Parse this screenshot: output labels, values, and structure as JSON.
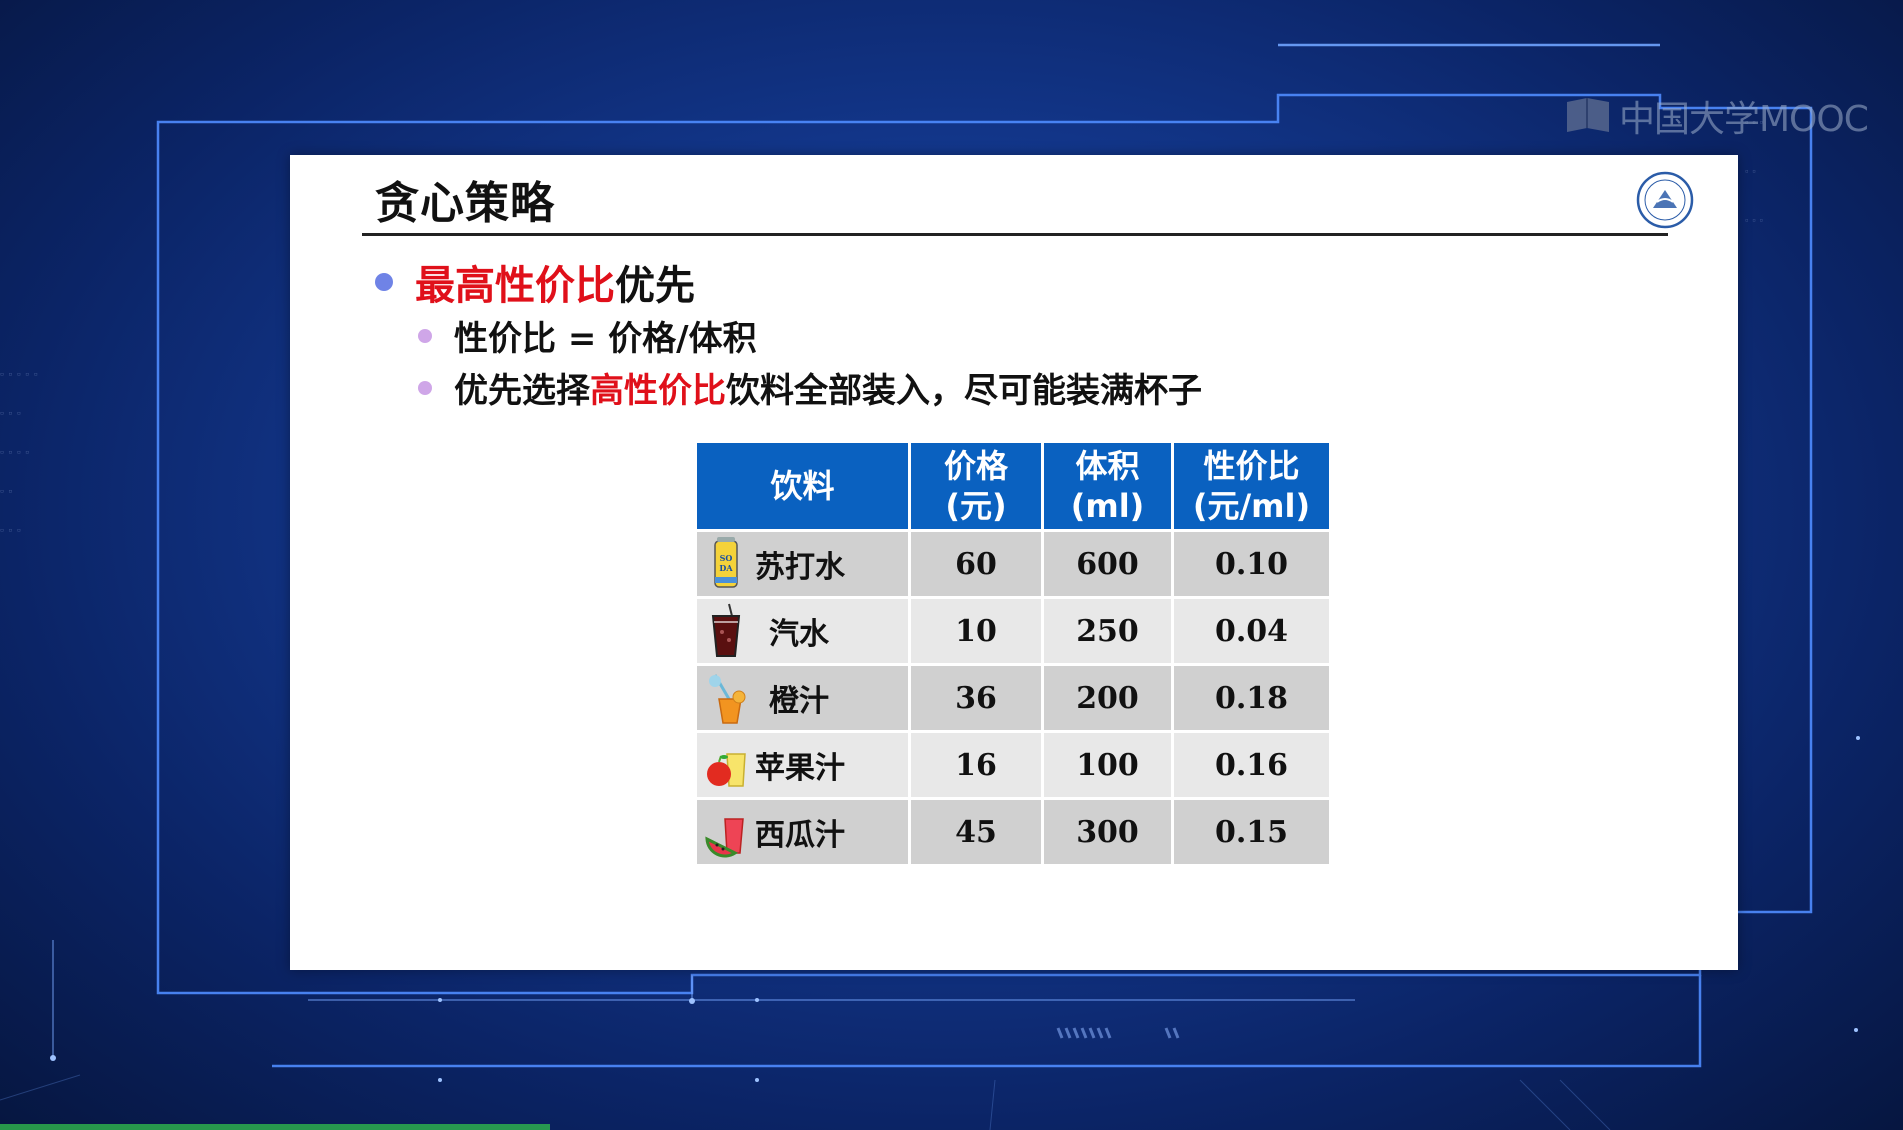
{
  "watermark": {
    "brand": "中国大学MOOC"
  },
  "slide": {
    "title": "贪心策略",
    "bullet1": {
      "highlight": "最高性价比",
      "rest": "优先"
    },
    "sub1": {
      "text": "性价比 = 价格/体积"
    },
    "sub2": {
      "pre": "优先选择",
      "highlight": "高性价比",
      "post": "饮料全部装入，尽可能装满杯子"
    }
  },
  "table": {
    "headers": {
      "name": "饮料",
      "price_1": "价格",
      "price_2": "(元)",
      "volume_1": "体积",
      "volume_2": "(ml)",
      "ratio_1": "性价比",
      "ratio_2": "(元/ml)"
    },
    "rows": [
      {
        "name": "苏打水",
        "price": "60",
        "volume": "600",
        "ratio": "0.10",
        "icon": "soda-can-icon",
        "icon_text_1": "SO",
        "icon_text_2": "DA"
      },
      {
        "name": "汽水",
        "price": "10",
        "volume": "250",
        "ratio": "0.04",
        "icon": "cola-glass-icon"
      },
      {
        "name": "橙汁",
        "price": "36",
        "volume": "200",
        "ratio": "0.18",
        "icon": "orange-juice-icon"
      },
      {
        "name": "苹果汁",
        "price": "16",
        "volume": "100",
        "ratio": "0.16",
        "icon": "apple-juice-icon"
      },
      {
        "name": "西瓜汁",
        "price": "45",
        "volume": "300",
        "ratio": "0.15",
        "icon": "watermelon-juice-icon"
      }
    ]
  },
  "colors": {
    "header_blue": "#0a61c0",
    "highlight_red": "#e0101a",
    "bullet_blue": "#6f83e6",
    "bullet_purple": "#cfa6e8"
  }
}
